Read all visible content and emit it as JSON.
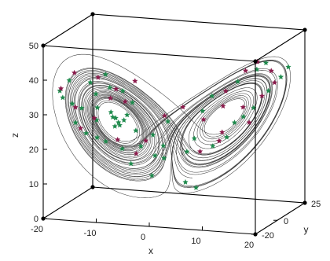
{
  "chart_data": {
    "type": "scatter",
    "title": "",
    "xlabel": "x",
    "ylabel": "y",
    "zlabel": "z",
    "xlim": [
      -20,
      20
    ],
    "ylim": [
      -20,
      25
    ],
    "zlim": [
      0,
      50
    ],
    "x_ticks": [
      "-20",
      "-10",
      "0",
      "10",
      "20"
    ],
    "y_ticks": [
      "-20",
      "0",
      "25"
    ],
    "z_ticks": [
      "0",
      "10",
      "20",
      "30",
      "40",
      "50"
    ],
    "grid": false,
    "box": true,
    "series": [
      {
        "kind": "trajectory",
        "color": "#1a1a1a",
        "sigma": 10,
        "rho": 28,
        "beta": 2.6667,
        "x0": [
          1,
          1,
          20
        ],
        "dt": 0.005,
        "steps": 9000
      },
      {
        "kind": "points",
        "marker": "star",
        "color": "#1e8a4c",
        "points": [
          [
            -8.2,
            -8.5,
            26.8
          ],
          [
            -9.1,
            -9.3,
            28.4
          ],
          [
            -7.5,
            -6.9,
            27.2
          ],
          [
            -8.6,
            -9.8,
            25.9
          ],
          [
            -6.8,
            -7.4,
            28.9
          ],
          [
            -9.7,
            -8.1,
            29.5
          ],
          [
            -7.9,
            -8.8,
            26.1
          ],
          [
            -8.9,
            -7.6,
            27.8
          ],
          [
            -5.4,
            -6.2,
            24.3
          ],
          [
            -11.5,
            -12.4,
            27.9
          ],
          [
            -13.8,
            -14.9,
            31.6
          ],
          [
            -12.2,
            -9.7,
            34.8
          ],
          [
            -15.1,
            -17.3,
            33.2
          ],
          [
            -10.4,
            -5.8,
            36.1
          ],
          [
            -6.9,
            -2.1,
            31.4
          ],
          [
            -4.5,
            -5.9,
            19.8
          ],
          [
            -3.1,
            -1.8,
            22.4
          ],
          [
            -14.2,
            -18.6,
            28.1
          ],
          [
            -12.8,
            -15.7,
            24.6
          ],
          [
            -9.8,
            -12.3,
            21.9
          ],
          [
            -16.3,
            -20.1,
            35.4
          ],
          [
            -13.1,
            -10.4,
            38.2
          ],
          [
            -8.4,
            -3.6,
            34.9
          ],
          [
            -11.1,
            -13.9,
            23.2
          ],
          [
            -7.2,
            -9.9,
            19.6
          ],
          [
            -2.4,
            -3.2,
            16.8
          ],
          [
            -1.5,
            0.6,
            15.4
          ],
          [
            2.3,
            3.1,
            17.2
          ],
          [
            4.1,
            1.2,
            21.6
          ],
          [
            -5.8,
            -8.7,
            15.2
          ],
          [
            -15.9,
            -16.1,
            39.6
          ],
          [
            -17.2,
            -18.4,
            36.9
          ],
          [
            -10.9,
            -7.2,
            40.1
          ],
          [
            -12.6,
            -6.5,
            30.2
          ],
          [
            9.6,
            11.2,
            24.8
          ],
          [
            12.4,
            15.1,
            28.6
          ],
          [
            14.8,
            16.9,
            33.4
          ],
          [
            11.2,
            6.4,
            37.8
          ],
          [
            7.1,
            2.8,
            33.9
          ],
          [
            13.6,
            12.2,
            40.4
          ],
          [
            16.7,
            19.1,
            37.2
          ],
          [
            8.4,
            9.9,
            20.7
          ],
          [
            6.2,
            7.8,
            18.3
          ],
          [
            10.8,
            13.4,
            26.2
          ],
          [
            15.4,
            11.8,
            42.6
          ],
          [
            -2.6,
            -5.1,
            11.4
          ],
          [
            1.8,
            4.2,
            8.1
          ],
          [
            3.4,
            6.1,
            6.3
          ],
          [
            -1.2,
            2.7,
            25.6
          ],
          [
            5.7,
            0.9,
            29.8
          ],
          [
            -0.6,
            -4.4,
            20.1
          ],
          [
            17.8,
            20.6,
            39.9
          ]
        ]
      },
      {
        "kind": "points",
        "marker": "star",
        "color": "#8a1a4b",
        "points": [
          [
            -11.8,
            -13.2,
            28.6
          ],
          [
            -14.6,
            -16.7,
            32.1
          ],
          [
            -9.4,
            -4.9,
            35.6
          ],
          [
            -16.8,
            -19.3,
            37.8
          ],
          [
            -12.1,
            -8.2,
            39.3
          ],
          [
            -7.8,
            -11.2,
            22.4
          ],
          [
            -5.1,
            -7.3,
            17.9
          ],
          [
            -13.4,
            -17.8,
            26.4
          ],
          [
            -10.2,
            -6.1,
            33.1
          ],
          [
            -15.6,
            -12.9,
            41.2
          ],
          [
            -3.8,
            -4.9,
            21.3
          ],
          [
            -8.1,
            -2.9,
            31.7
          ],
          [
            10.9,
            12.7,
            29.1
          ],
          [
            13.7,
            16.4,
            31.9
          ],
          [
            9.2,
            5.1,
            35.1
          ],
          [
            15.2,
            17.6,
            39.1
          ],
          [
            12.3,
            8.2,
            40.7
          ],
          [
            7.6,
            9.6,
            22.1
          ],
          [
            5.3,
            3.8,
            26.7
          ],
          [
            11.6,
            14.9,
            24.3
          ],
          [
            16.4,
            14.8,
            36.4
          ],
          [
            14.1,
            10.3,
            43.1
          ],
          [
            4.2,
            5.9,
            16.9
          ],
          [
            8.8,
            4.6,
            30.8
          ],
          [
            -6.2,
            -3.1,
            37.9
          ],
          [
            2.1,
            0.4,
            30.6
          ],
          [
            -0.9,
            -1.7,
            28.2
          ],
          [
            6.9,
            10.2,
            19.4
          ]
        ]
      }
    ]
  }
}
